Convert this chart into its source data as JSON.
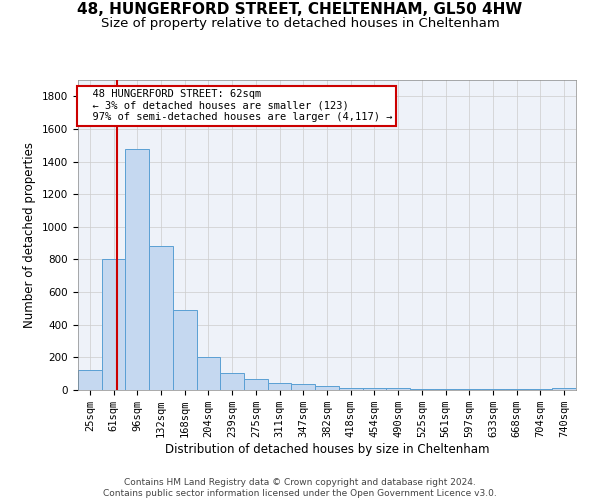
{
  "title1": "48, HUNGERFORD STREET, CHELTENHAM, GL50 4HW",
  "title2": "Size of property relative to detached houses in Cheltenham",
  "xlabel": "Distribution of detached houses by size in Cheltenham",
  "ylabel": "Number of detached properties",
  "footer1": "Contains HM Land Registry data © Crown copyright and database right 2024.",
  "footer2": "Contains public sector information licensed under the Open Government Licence v3.0.",
  "bar_labels": [
    "25sqm",
    "61sqm",
    "96sqm",
    "132sqm",
    "168sqm",
    "204sqm",
    "239sqm",
    "275sqm",
    "311sqm",
    "347sqm",
    "382sqm",
    "418sqm",
    "454sqm",
    "490sqm",
    "525sqm",
    "561sqm",
    "597sqm",
    "633sqm",
    "668sqm",
    "704sqm",
    "740sqm"
  ],
  "bar_values": [
    125,
    800,
    1480,
    880,
    490,
    205,
    105,
    65,
    40,
    35,
    25,
    15,
    10,
    15,
    5,
    5,
    5,
    5,
    5,
    5,
    15
  ],
  "bar_color": "#c5d8f0",
  "bar_edge_color": "#5a9fd4",
  "background_color": "#eef2f9",
  "grid_color": "#cccccc",
  "annotation_text": "  48 HUNGERFORD STREET: 62sqm\n  ← 3% of detached houses are smaller (123)\n  97% of semi-detached houses are larger (4,117) →",
  "annotation_box_color": "#cc0000",
  "vline_x": 1.15,
  "vline_color": "#cc0000",
  "ylim": [
    0,
    1900
  ],
  "yticks": [
    0,
    200,
    400,
    600,
    800,
    1000,
    1200,
    1400,
    1600,
    1800
  ],
  "title1_fontsize": 11,
  "title2_fontsize": 9.5,
  "xlabel_fontsize": 8.5,
  "ylabel_fontsize": 8.5,
  "tick_fontsize": 7.5,
  "annotation_fontsize": 7.5,
  "footer_fontsize": 6.5
}
